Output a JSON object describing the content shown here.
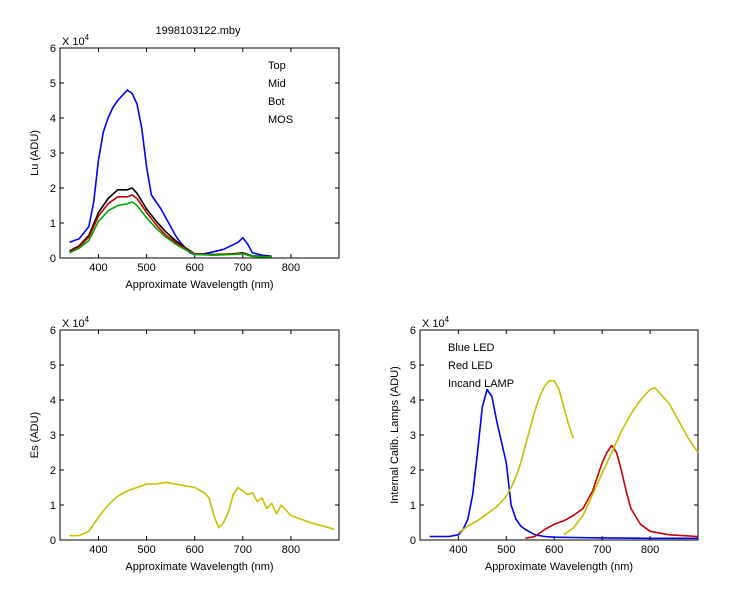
{
  "figure_title": "1998103122.mby",
  "exponent_label": "X 10",
  "exponent_power": "4",
  "chart_data": [
    {
      "id": "top",
      "type": "line",
      "title": "1998103122.mby",
      "xlabel": "Approximate Wavelength (nm)",
      "ylabel": "Lu (ADU)",
      "xlim": [
        320,
        900
      ],
      "ylim": [
        0,
        6
      ],
      "y_scale_factor": "X 10^4",
      "xticks": [
        400,
        500,
        600,
        700,
        800
      ],
      "yticks": [
        0,
        1,
        2,
        3,
        4,
        5,
        6
      ],
      "legend_position": "top-right",
      "legend": [
        {
          "name": "Top",
          "color": "#000000"
        },
        {
          "name": "Mid",
          "color": "#cc0000"
        },
        {
          "name": "Bot",
          "color": "#00aa00"
        },
        {
          "name": "MOS",
          "color": "#0000ff"
        }
      ],
      "series": [
        {
          "name": "MOS",
          "color": "#0000ff",
          "x": [
            340,
            360,
            380,
            390,
            400,
            410,
            420,
            430,
            440,
            450,
            460,
            470,
            480,
            490,
            500,
            510,
            520,
            530,
            540,
            550,
            560,
            570,
            580,
            590,
            600,
            620,
            640,
            660,
            680,
            690,
            700,
            710,
            720,
            740,
            760
          ],
          "y": [
            0.45,
            0.55,
            0.9,
            1.6,
            2.8,
            3.6,
            4.0,
            4.3,
            4.5,
            4.65,
            4.8,
            4.7,
            4.4,
            3.7,
            2.6,
            1.8,
            1.6,
            1.4,
            1.15,
            0.9,
            0.65,
            0.45,
            0.3,
            0.15,
            0.1,
            0.12,
            0.18,
            0.25,
            0.38,
            0.45,
            0.58,
            0.4,
            0.15,
            0.08,
            0.05
          ]
        },
        {
          "name": "Top",
          "color": "#000000",
          "x": [
            340,
            360,
            380,
            400,
            420,
            440,
            460,
            470,
            480,
            500,
            520,
            540,
            560,
            580,
            600,
            640,
            680,
            700,
            720,
            760
          ],
          "y": [
            0.2,
            0.35,
            0.65,
            1.3,
            1.7,
            1.95,
            1.95,
            2.0,
            1.85,
            1.4,
            1.05,
            0.75,
            0.5,
            0.3,
            0.12,
            0.1,
            0.12,
            0.15,
            0.06,
            0.04
          ]
        },
        {
          "name": "Mid",
          "color": "#cc0000",
          "x": [
            340,
            360,
            380,
            400,
            420,
            440,
            460,
            470,
            480,
            500,
            520,
            540,
            560,
            580,
            600,
            640,
            680,
            700,
            720,
            760
          ],
          "y": [
            0.18,
            0.32,
            0.6,
            1.2,
            1.55,
            1.75,
            1.75,
            1.8,
            1.7,
            1.3,
            0.95,
            0.65,
            0.45,
            0.27,
            0.11,
            0.09,
            0.11,
            0.13,
            0.05,
            0.03
          ]
        },
        {
          "name": "Bot",
          "color": "#00aa00",
          "x": [
            340,
            360,
            380,
            400,
            420,
            440,
            460,
            470,
            480,
            500,
            520,
            540,
            560,
            580,
            600,
            640,
            680,
            700,
            720,
            760
          ],
          "y": [
            0.15,
            0.28,
            0.5,
            1.05,
            1.35,
            1.5,
            1.55,
            1.6,
            1.5,
            1.15,
            0.85,
            0.6,
            0.4,
            0.24,
            0.1,
            0.08,
            0.1,
            0.12,
            0.05,
            0.03
          ]
        }
      ]
    },
    {
      "id": "bottom-left",
      "type": "line",
      "title": "",
      "xlabel": "Approximate Wavelength (nm)",
      "ylabel": "Es  (ADU)",
      "xlim": [
        320,
        900
      ],
      "ylim": [
        0,
        6
      ],
      "y_scale_factor": "X 10^4",
      "xticks": [
        400,
        500,
        600,
        700,
        800
      ],
      "yticks": [
        0,
        1,
        2,
        3,
        4,
        5,
        6
      ],
      "series": [
        {
          "name": "",
          "color": "#c8c000",
          "x": [
            340,
            360,
            380,
            400,
            420,
            440,
            460,
            480,
            500,
            520,
            540,
            560,
            580,
            600,
            620,
            630,
            640,
            650,
            660,
            670,
            680,
            690,
            700,
            710,
            720,
            730,
            740,
            750,
            760,
            770,
            780,
            800,
            820,
            840,
            860,
            880,
            890
          ],
          "y": [
            0.12,
            0.13,
            0.25,
            0.65,
            1.0,
            1.25,
            1.4,
            1.5,
            1.6,
            1.6,
            1.65,
            1.6,
            1.55,
            1.5,
            1.35,
            1.2,
            0.7,
            0.35,
            0.5,
            0.8,
            1.3,
            1.5,
            1.4,
            1.3,
            1.35,
            1.1,
            1.2,
            0.9,
            1.05,
            0.75,
            1.0,
            0.7,
            0.6,
            0.5,
            0.42,
            0.35,
            0.3
          ]
        }
      ]
    },
    {
      "id": "bottom-right",
      "type": "line",
      "title": "",
      "xlabel": "Approximate Wavelength (nm)",
      "ylabel": "Internal Calib. Lamps (ADU)",
      "xlim": [
        320,
        900
      ],
      "ylim": [
        0,
        6
      ],
      "y_scale_factor": "X 10^4",
      "xticks": [
        400,
        500,
        600,
        700,
        800
      ],
      "yticks": [
        0,
        1,
        2,
        3,
        4,
        5,
        6
      ],
      "legend_position": "top-left",
      "legend": [
        {
          "name": "Blue LED",
          "color": "#0000ff"
        },
        {
          "name": "Red LED",
          "color": "#cc0000"
        },
        {
          "name": "Incand LAMP",
          "color": "#c8c000"
        }
      ],
      "series": [
        {
          "name": "Blue LED",
          "color": "#0000ff",
          "x": [
            340,
            380,
            400,
            410,
            420,
            430,
            440,
            450,
            460,
            470,
            480,
            490,
            500,
            510,
            520,
            530,
            540,
            560,
            580,
            600,
            640,
            700,
            800,
            900
          ],
          "y": [
            0.1,
            0.1,
            0.15,
            0.3,
            0.6,
            1.3,
            2.5,
            3.8,
            4.3,
            4.1,
            3.4,
            2.8,
            2.2,
            1.0,
            0.6,
            0.4,
            0.3,
            0.15,
            0.1,
            0.08,
            0.07,
            0.06,
            0.05,
            0.05
          ]
        },
        {
          "name": "Red LED",
          "color": "#cc0000",
          "x": [
            540,
            560,
            580,
            600,
            620,
            640,
            660,
            680,
            690,
            700,
            710,
            720,
            730,
            740,
            750,
            760,
            780,
            800,
            840,
            900
          ],
          "y": [
            0.05,
            0.1,
            0.3,
            0.45,
            0.55,
            0.7,
            0.9,
            1.4,
            1.8,
            2.2,
            2.5,
            2.7,
            2.5,
            2.0,
            1.4,
            0.9,
            0.45,
            0.25,
            0.15,
            0.1
          ]
        },
        {
          "name": "Incand LAMP",
          "color": "#c8c000",
          "x": [
            400,
            420,
            440,
            460,
            480,
            500,
            510,
            520,
            530,
            540,
            550,
            560,
            570,
            580,
            590,
            600,
            610,
            620,
            630,
            640
          ],
          "y": [
            0.2,
            0.4,
            0.55,
            0.75,
            0.95,
            1.25,
            1.5,
            1.8,
            2.2,
            2.7,
            3.2,
            3.7,
            4.1,
            4.4,
            4.55,
            4.55,
            4.3,
            3.8,
            3.3,
            2.9
          ]
        },
        {
          "name": "Incand LAMP",
          "color": "#c8c000",
          "x": [
            620,
            640,
            660,
            680,
            700,
            720,
            740,
            760,
            780,
            800,
            810,
            820,
            840,
            860,
            880,
            900
          ],
          "y": [
            0.15,
            0.35,
            0.7,
            1.3,
            1.9,
            2.5,
            3.1,
            3.6,
            4.0,
            4.3,
            4.35,
            4.2,
            3.9,
            3.4,
            2.9,
            2.5
          ]
        }
      ]
    }
  ]
}
